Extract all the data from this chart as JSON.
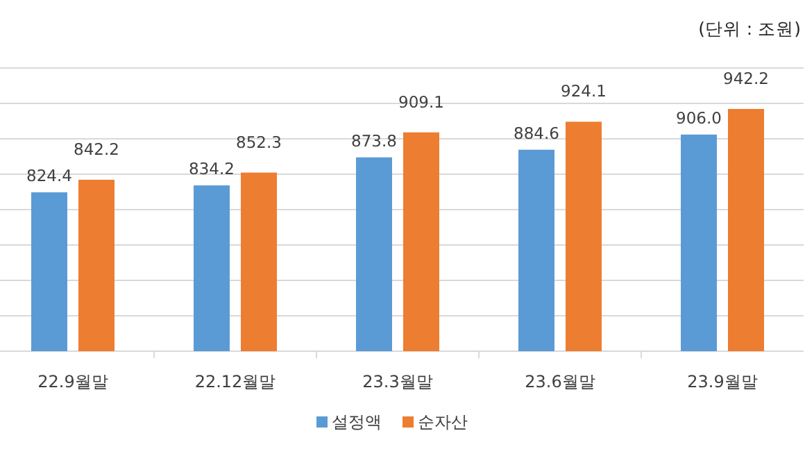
{
  "chart_data": {
    "type": "bar",
    "annotations": [
      "(단위 : 조원)"
    ],
    "categories": [
      "22.9월말",
      "22.12월말",
      "23.3월말",
      "23.6월말",
      "23.9월말"
    ],
    "series": [
      {
        "name": "설정액",
        "color": "#5b9bd5",
        "values": [
          824.4,
          834.2,
          873.8,
          884.6,
          906.0
        ],
        "value_labels": [
          "824.4",
          "834.2",
          "873.8",
          "884.6",
          "906.0"
        ]
      },
      {
        "name": "순자산",
        "color": "#ed7d31",
        "values": [
          842.2,
          852.3,
          909.1,
          924.1,
          942.2
        ],
        "value_labels": [
          "842.2",
          "852.3",
          "909.1",
          "924.1",
          "942.2"
        ]
      }
    ],
    "ylim": [
      600,
      1000
    ],
    "yticks": [
      {
        "value": 600,
        "label": null
      },
      {
        "value": 650,
        "label": null
      },
      {
        "value": 700,
        "label": null
      },
      {
        "value": 750,
        "label": null
      },
      {
        "value": 800,
        "label": null
      },
      {
        "value": 850,
        "label": null
      },
      {
        "value": 900,
        "label": null
      },
      {
        "value": 950,
        "label": null
      },
      {
        "value": 1000,
        "label": null
      }
    ],
    "tick_labels": "x",
    "grid": "y",
    "legend": "bottom"
  }
}
